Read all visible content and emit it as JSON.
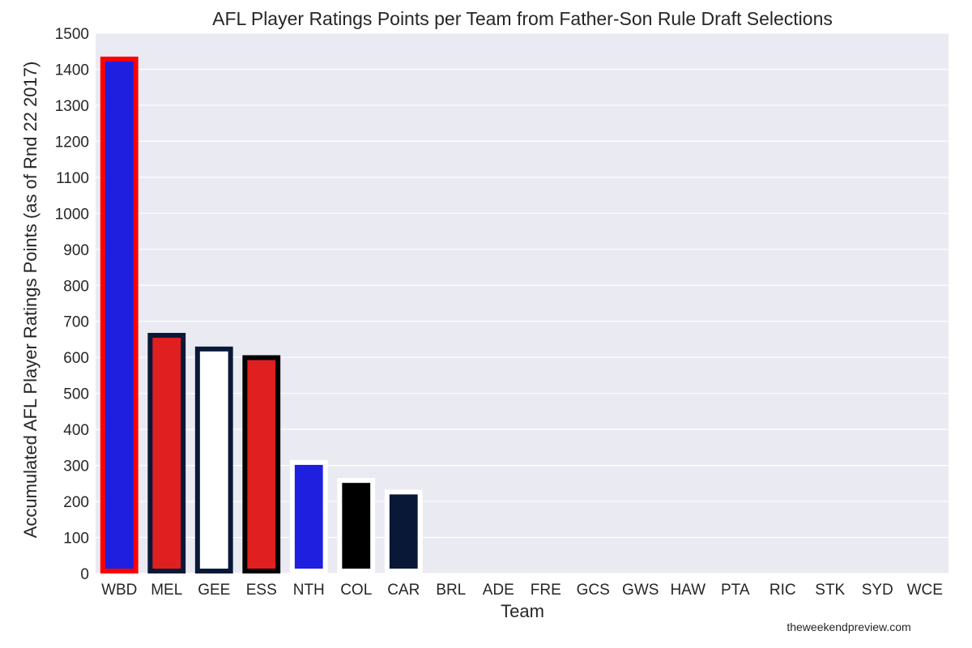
{
  "chart_data": {
    "type": "bar",
    "title": "AFL Player Ratings Points per Team from Father-Son Rule Draft Selections",
    "xlabel": "Team",
    "ylabel": "Accumulated AFL Player Ratings Points (as of Rnd 22 2017)",
    "ylim": [
      0,
      1500
    ],
    "yticks": [
      "0",
      "100",
      "200",
      "300",
      "400",
      "500",
      "600",
      "700",
      "800",
      "900",
      "1000",
      "1100",
      "1200",
      "1300",
      "1400",
      "1500"
    ],
    "grid": true,
    "categories": [
      "WBD",
      "MEL",
      "GEE",
      "ESS",
      "NTH",
      "COL",
      "CAR",
      "BRL",
      "ADE",
      "FRE",
      "GCS",
      "GWS",
      "HAW",
      "PTA",
      "RIC",
      "STK",
      "SYD",
      "WCE"
    ],
    "values": [
      1435,
      668,
      630,
      606,
      315,
      265,
      233,
      0,
      0,
      0,
      0,
      0,
      0,
      0,
      0,
      0,
      0,
      0
    ],
    "fill_colors": [
      "#1f1fe0",
      "#e02020",
      "#ffffff",
      "#e02020",
      "#1f1fe0",
      "#000000",
      "#0a1838",
      "#ffd700",
      "#ffff33",
      "#ffffff",
      "#ffd700",
      "#000000",
      "#ffd700",
      "#000000",
      "#000000",
      "#ff0000",
      "#ff0000",
      "#ffff33"
    ],
    "edge_colors": [
      "#ff0000",
      "#0a1838",
      "#0a1838",
      "#000000",
      "#ffffff",
      "#ffffff",
      "#ffffff",
      "#ffd700",
      "#ffff33",
      "#ffffff",
      "#ffd700",
      "#000000",
      "#ffd700",
      "#000000",
      "#000000",
      "#ff0000",
      "#ff0000",
      "#ffff33"
    ],
    "plot_background": "#eaeaf2",
    "credit": "theweekendpreview.com"
  }
}
